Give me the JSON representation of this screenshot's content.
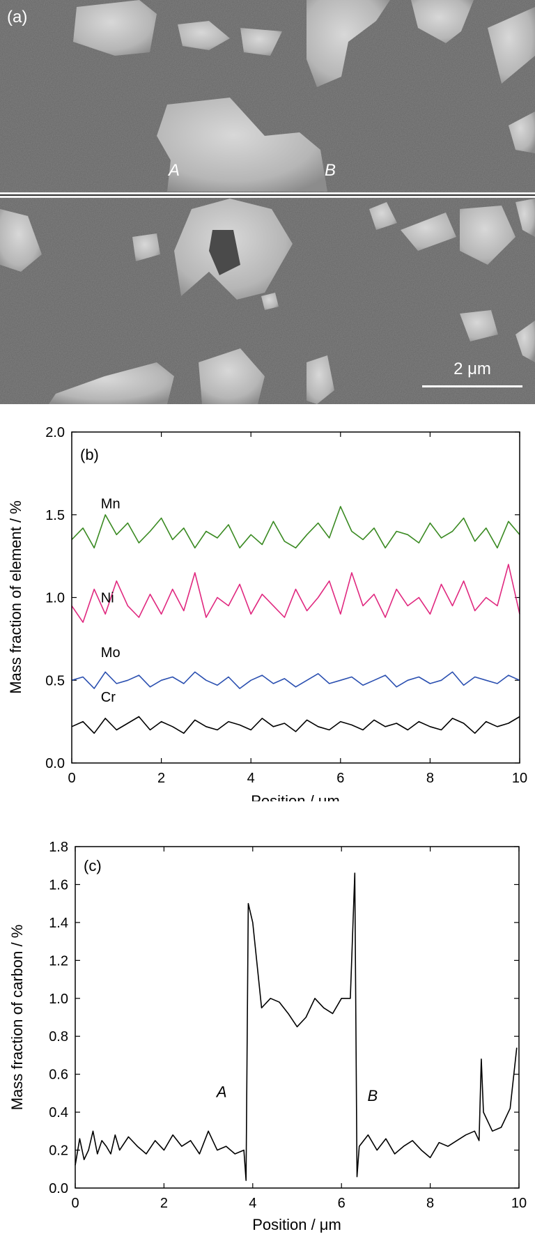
{
  "panel_a": {
    "label": "(a)",
    "marker_a": "A",
    "marker_b": "B",
    "scale_bar_label": "2 μm"
  },
  "chart_data": [
    {
      "type": "line",
      "panel_label": "(b)",
      "xlabel": "Position / μm",
      "ylabel": "Mass fraction of element / %",
      "xlim": [
        0,
        10
      ],
      "ylim": [
        0,
        2.0
      ],
      "xticks": [
        "0",
        "2",
        "4",
        "6",
        "8",
        "10"
      ],
      "yticks": [
        "0.0",
        "0.5",
        "1.0",
        "1.5",
        "2.0"
      ],
      "grid": false,
      "x": [
        0.0,
        0.25,
        0.5,
        0.75,
        1.0,
        1.25,
        1.5,
        1.75,
        2.0,
        2.25,
        2.5,
        2.75,
        3.0,
        3.25,
        3.5,
        3.75,
        4.0,
        4.25,
        4.5,
        4.75,
        5.0,
        5.25,
        5.5,
        5.75,
        6.0,
        6.25,
        6.5,
        6.75,
        7.0,
        7.25,
        7.5,
        7.75,
        8.0,
        8.25,
        8.5,
        8.75,
        9.0,
        9.25,
        9.5,
        9.75,
        10.0
      ],
      "series": [
        {
          "name": "Mn",
          "color": "#3a8a22",
          "values": [
            1.35,
            1.42,
            1.3,
            1.5,
            1.38,
            1.45,
            1.33,
            1.4,
            1.48,
            1.35,
            1.42,
            1.3,
            1.4,
            1.36,
            1.44,
            1.3,
            1.38,
            1.32,
            1.46,
            1.34,
            1.3,
            1.38,
            1.45,
            1.36,
            1.55,
            1.4,
            1.35,
            1.42,
            1.3,
            1.4,
            1.38,
            1.33,
            1.45,
            1.36,
            1.4,
            1.48,
            1.34,
            1.42,
            1.3,
            1.46,
            1.38
          ]
        },
        {
          "name": "Ni",
          "color": "#e0287f",
          "values": [
            0.95,
            0.85,
            1.05,
            0.9,
            1.1,
            0.95,
            0.88,
            1.02,
            0.9,
            1.05,
            0.92,
            1.15,
            0.88,
            1.0,
            0.95,
            1.08,
            0.9,
            1.02,
            0.95,
            0.88,
            1.05,
            0.92,
            1.0,
            1.1,
            0.9,
            1.15,
            0.95,
            1.02,
            0.88,
            1.05,
            0.95,
            1.0,
            0.9,
            1.08,
            0.95,
            1.1,
            0.92,
            1.0,
            0.95,
            1.2,
            0.9
          ]
        },
        {
          "name": "Mo",
          "color": "#2a4fb0",
          "values": [
            0.5,
            0.52,
            0.45,
            0.55,
            0.48,
            0.5,
            0.53,
            0.46,
            0.5,
            0.52,
            0.48,
            0.55,
            0.5,
            0.47,
            0.52,
            0.45,
            0.5,
            0.53,
            0.48,
            0.51,
            0.46,
            0.5,
            0.54,
            0.48,
            0.5,
            0.52,
            0.47,
            0.5,
            0.53,
            0.46,
            0.5,
            0.52,
            0.48,
            0.5,
            0.55,
            0.47,
            0.52,
            0.5,
            0.48,
            0.53,
            0.5
          ]
        },
        {
          "name": "Cr",
          "color": "#000000",
          "values": [
            0.22,
            0.25,
            0.18,
            0.27,
            0.2,
            0.24,
            0.28,
            0.2,
            0.25,
            0.22,
            0.18,
            0.26,
            0.22,
            0.2,
            0.25,
            0.23,
            0.2,
            0.27,
            0.22,
            0.24,
            0.19,
            0.26,
            0.22,
            0.2,
            0.25,
            0.23,
            0.2,
            0.26,
            0.22,
            0.24,
            0.2,
            0.25,
            0.22,
            0.2,
            0.27,
            0.24,
            0.18,
            0.25,
            0.22,
            0.24,
            0.28
          ]
        }
      ]
    },
    {
      "type": "line",
      "panel_label": "(c)",
      "xlabel": "Position / μm",
      "ylabel": "Mass fraction of carbon / %",
      "xlim": [
        0,
        10
      ],
      "ylim": [
        0,
        1.8
      ],
      "xticks": [
        "0",
        "2",
        "4",
        "6",
        "8",
        "10"
      ],
      "yticks": [
        "0.0",
        "0.2",
        "0.4",
        "0.6",
        "0.8",
        "1.0",
        "1.2",
        "1.4",
        "1.6",
        "1.8"
      ],
      "grid": false,
      "annotations": [
        {
          "text": "A",
          "x": 3.3,
          "y": 0.48
        },
        {
          "text": "B",
          "x": 6.7,
          "y": 0.46
        }
      ],
      "series": [
        {
          "name": "",
          "color": "#000000",
          "x": [
            0.0,
            0.1,
            0.2,
            0.3,
            0.4,
            0.5,
            0.6,
            0.7,
            0.8,
            0.9,
            1.0,
            1.2,
            1.4,
            1.6,
            1.8,
            2.0,
            2.2,
            2.4,
            2.6,
            2.8,
            3.0,
            3.2,
            3.4,
            3.6,
            3.8,
            3.85,
            3.9,
            4.0,
            4.2,
            4.4,
            4.6,
            4.8,
            5.0,
            5.2,
            5.4,
            5.6,
            5.8,
            6.0,
            6.2,
            6.3,
            6.35,
            6.4,
            6.6,
            6.8,
            7.0,
            7.2,
            7.4,
            7.6,
            7.8,
            8.0,
            8.2,
            8.4,
            8.6,
            8.8,
            9.0,
            9.1,
            9.15,
            9.2,
            9.4,
            9.6,
            9.8,
            9.95
          ],
          "values": [
            0.12,
            0.26,
            0.15,
            0.2,
            0.3,
            0.18,
            0.25,
            0.22,
            0.18,
            0.28,
            0.2,
            0.27,
            0.22,
            0.18,
            0.25,
            0.2,
            0.28,
            0.22,
            0.25,
            0.18,
            0.3,
            0.2,
            0.22,
            0.18,
            0.2,
            0.04,
            1.5,
            1.4,
            0.95,
            1.0,
            0.98,
            0.92,
            0.85,
            0.9,
            1.0,
            0.95,
            0.92,
            1.0,
            1.0,
            1.66,
            0.06,
            0.22,
            0.28,
            0.2,
            0.26,
            0.18,
            0.22,
            0.25,
            0.2,
            0.16,
            0.24,
            0.22,
            0.25,
            0.28,
            0.3,
            0.25,
            0.68,
            0.4,
            0.3,
            0.32,
            0.42,
            0.74
          ]
        }
      ]
    }
  ]
}
